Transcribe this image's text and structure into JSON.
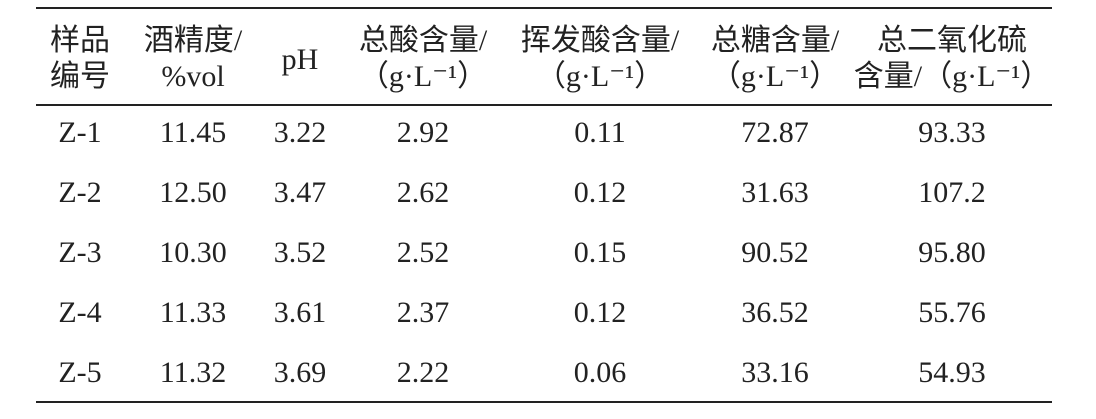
{
  "table": {
    "header": [
      [
        "样品",
        "编号"
      ],
      [
        "酒精度/",
        "%vol"
      ],
      [
        "pH"
      ],
      [
        "总酸含量/",
        "（g·L⁻¹）"
      ],
      [
        "挥发酸含量/",
        "（g·L⁻¹）"
      ],
      [
        "总糖含量/",
        "（g·L⁻¹）"
      ],
      [
        "总二氧化硫",
        "含量/（g·L⁻¹）"
      ]
    ],
    "rows": [
      [
        "Z-1",
        "11.45",
        "3.22",
        "2.92",
        "0.11",
        "72.87",
        "93.33"
      ],
      [
        "Z-2",
        "12.50",
        "3.47",
        "2.62",
        "0.12",
        "31.63",
        "107.2"
      ],
      [
        "Z-3",
        "10.30",
        "3.52",
        "2.52",
        "0.15",
        "90.52",
        "95.80"
      ],
      [
        "Z-4",
        "11.33",
        "3.61",
        "2.37",
        "0.12",
        "36.52",
        "55.76"
      ],
      [
        "Z-5",
        "11.32",
        "3.69",
        "2.22",
        "0.06",
        "33.16",
        "54.93"
      ]
    ]
  }
}
